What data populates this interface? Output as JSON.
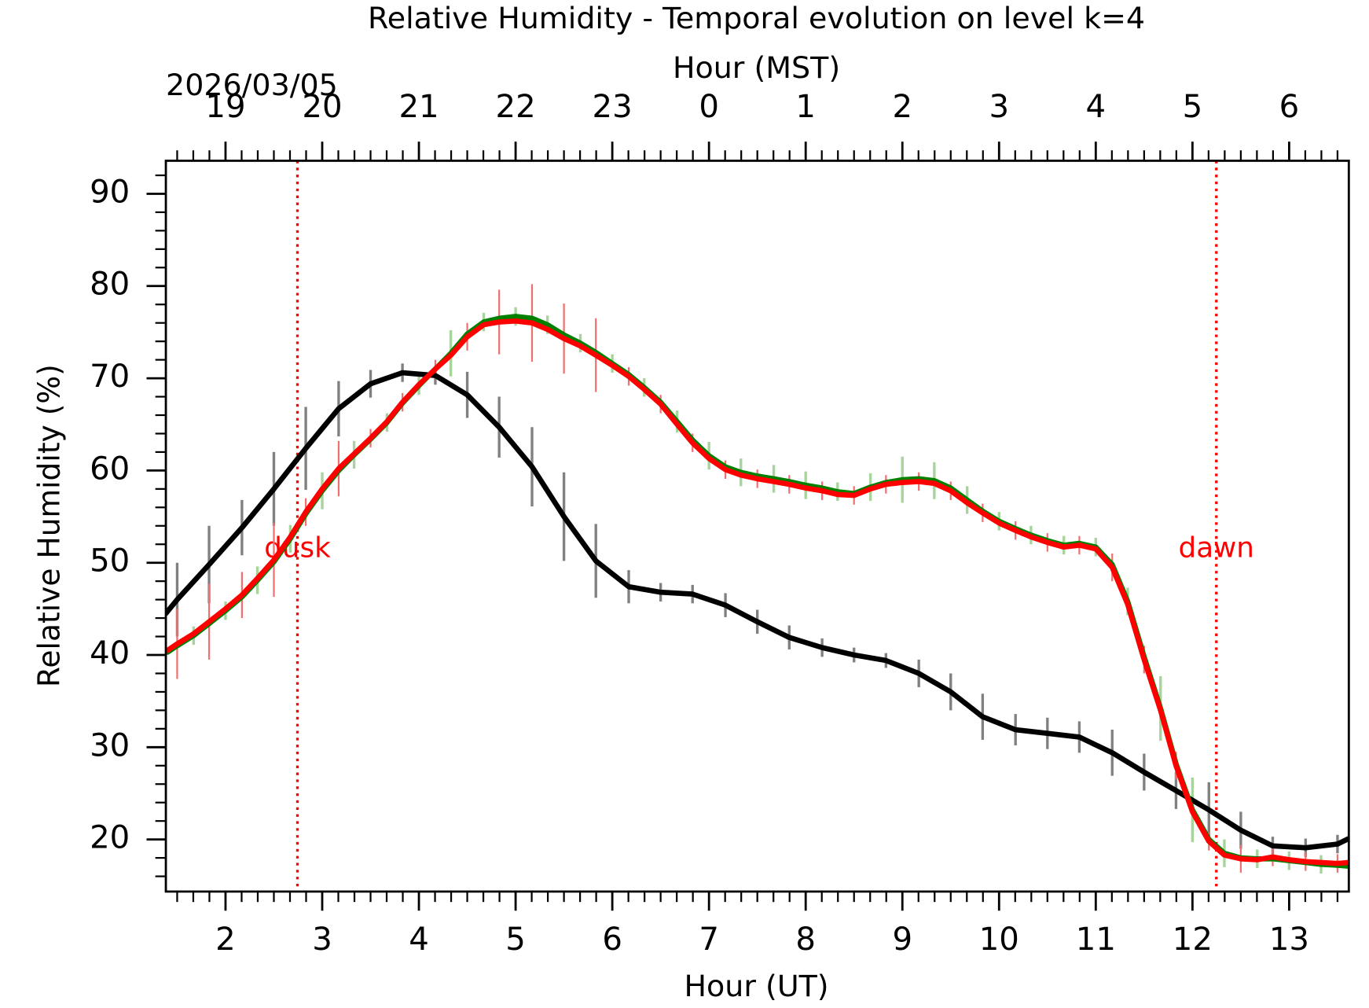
{
  "chart_data": {
    "type": "line",
    "title": "Relative Humidity - Temporal evolution on level k=4",
    "xlabel": "Hour (UT)",
    "ylabel": "Relative Humidity (%)",
    "x2label": "Hour (MST)",
    "date_label": "2026/03/05",
    "xlim": [
      1.383,
      13.617
    ],
    "ylim": [
      14.35,
      93.58
    ],
    "xticks": [
      2,
      3,
      4,
      5,
      6,
      7,
      8,
      9,
      10,
      11,
      12,
      13
    ],
    "x2ticks": [
      {
        "value": 2,
        "label": "19"
      },
      {
        "value": 3,
        "label": "20"
      },
      {
        "value": 4,
        "label": "21"
      },
      {
        "value": 5,
        "label": "22"
      },
      {
        "value": 6,
        "label": "23"
      },
      {
        "value": 7,
        "label": "0"
      },
      {
        "value": 8,
        "label": "1"
      },
      {
        "value": 9,
        "label": "2"
      },
      {
        "value": 10,
        "label": "3"
      },
      {
        "value": 11,
        "label": "4"
      },
      {
        "value": 12,
        "label": "5"
      },
      {
        "value": 13,
        "label": "6"
      }
    ],
    "yticks": [
      20,
      30,
      40,
      50,
      60,
      70,
      80,
      90
    ],
    "annotations": [
      {
        "text": "dusk",
        "x": 2.744,
        "color": "#ff0000"
      },
      {
        "text": "dawn",
        "x": 12.247,
        "color": "#ff0000"
      }
    ],
    "series": [
      {
        "color": "#000000",
        "errorbar_color": "#808080",
        "x": [
          1.383,
          1.5,
          1.83,
          2.17,
          2.5,
          2.83,
          3.17,
          3.5,
          3.83,
          4.17,
          4.5,
          4.83,
          5.17,
          5.5,
          5.83,
          6.17,
          6.5,
          6.83,
          7.17,
          7.5,
          7.83,
          8.17,
          8.5,
          8.83,
          9.17,
          9.5,
          9.83,
          10.17,
          10.5,
          10.83,
          11.17,
          11.5,
          11.83,
          12.17,
          12.5,
          12.83,
          13.17,
          13.5,
          13.617
        ],
        "values": [
          44.5,
          46,
          49.8,
          53.8,
          58,
          62.4,
          66.7,
          69.4,
          70.6,
          70.3,
          68.2,
          64.7,
          60.4,
          55,
          50.2,
          47.4,
          46.8,
          46.6,
          45.4,
          43.6,
          41.9,
          40.8,
          40,
          39.4,
          38,
          36,
          33.3,
          31.9,
          31.5,
          31.1,
          29.4,
          27.3,
          25.3,
          23.2,
          21,
          19.3,
          19.1,
          19.5,
          20.1
        ],
        "errors": [
          null,
          4,
          4.2,
          3,
          4,
          4.5,
          3,
          1.5,
          1,
          1,
          2.5,
          3.3,
          4.3,
          4.8,
          4,
          1.8,
          1,
          1,
          1.3,
          1.3,
          1.3,
          1,
          0.8,
          0.8,
          1.5,
          2,
          2.5,
          1.7,
          1.7,
          1.7,
          2.5,
          2,
          2,
          3,
          2,
          1,
          1,
          1,
          null
        ]
      },
      {
        "color": "#008000",
        "errorbar_color": "#a6d49a",
        "x": [
          1.4,
          1.5,
          1.67,
          1.83,
          2.0,
          2.17,
          2.33,
          2.5,
          2.67,
          2.83,
          3.0,
          3.17,
          3.33,
          3.5,
          3.67,
          3.83,
          4.0,
          4.17,
          4.33,
          4.5,
          4.67,
          4.83,
          5.0,
          5.17,
          5.33,
          5.5,
          5.67,
          5.83,
          6.0,
          6.17,
          6.33,
          6.5,
          6.67,
          6.83,
          7.0,
          7.17,
          7.33,
          7.5,
          7.67,
          7.83,
          8.0,
          8.17,
          8.33,
          8.5,
          8.67,
          8.83,
          9.0,
          9.17,
          9.33,
          9.5,
          9.67,
          9.83,
          10.0,
          10.17,
          10.33,
          10.5,
          10.67,
          10.83,
          11.0,
          11.17,
          11.33,
          11.5,
          11.67,
          11.83,
          12.0,
          12.17,
          12.33,
          12.5,
          12.67,
          12.83,
          13.0,
          13.17,
          13.33,
          13.5,
          13.617
        ],
        "values": [
          40.3,
          41,
          42.1,
          43.4,
          44.8,
          46.3,
          48.1,
          50.1,
          52.6,
          55.3,
          57.8,
          60,
          61.7,
          63.4,
          65.2,
          67.3,
          69.2,
          71,
          72.7,
          74.8,
          76.1,
          76.5,
          76.7,
          76.5,
          75.8,
          74.7,
          73.8,
          72.8,
          71.6,
          70.4,
          69,
          67.4,
          65.3,
          63.3,
          61.6,
          60.4,
          59.8,
          59.4,
          59.1,
          58.8,
          58.4,
          58.1,
          57.7,
          57.5,
          58.2,
          58.7,
          59,
          59.1,
          58.9,
          58.1,
          56.8,
          55.6,
          54.5,
          53.7,
          53,
          52.4,
          51.9,
          52.1,
          51.7,
          49.8,
          45.8,
          39.8,
          34.2,
          28.2,
          23.2,
          20,
          18.5,
          18,
          17.9,
          17.9,
          17.7,
          17.5,
          17.3,
          17.2,
          17.1
        ],
        "errors": [
          null,
          null,
          1,
          null,
          1,
          null,
          1.5,
          null,
          1.5,
          null,
          2,
          null,
          1.5,
          null,
          1,
          null,
          1,
          null,
          2.5,
          null,
          1,
          null,
          1,
          null,
          1,
          null,
          1,
          null,
          1,
          null,
          1,
          null,
          1.2,
          null,
          1.5,
          null,
          1.5,
          null,
          1.5,
          null,
          1.5,
          null,
          1,
          null,
          1.5,
          null,
          2.5,
          null,
          2,
          null,
          1.5,
          null,
          1,
          null,
          1,
          null,
          1,
          null,
          1,
          null,
          1.5,
          null,
          3.5,
          null,
          3.5,
          null,
          1.5,
          null,
          1,
          null,
          1,
          null,
          1,
          null,
          null
        ]
      },
      {
        "color": "#ff0000",
        "errorbar_color": "#f07070",
        "x": [
          1.4,
          1.5,
          1.67,
          1.83,
          2.0,
          2.17,
          2.33,
          2.5,
          2.67,
          2.83,
          3.0,
          3.17,
          3.33,
          3.5,
          3.67,
          3.83,
          4.0,
          4.17,
          4.33,
          4.5,
          4.67,
          4.83,
          5.0,
          5.17,
          5.33,
          5.5,
          5.67,
          5.83,
          6.0,
          6.17,
          6.33,
          6.5,
          6.67,
          6.83,
          7.0,
          7.17,
          7.33,
          7.5,
          7.67,
          7.83,
          8.0,
          8.17,
          8.33,
          8.5,
          8.67,
          8.83,
          9.0,
          9.17,
          9.33,
          9.5,
          9.67,
          9.83,
          10.0,
          10.17,
          10.33,
          10.5,
          10.67,
          10.83,
          11.0,
          11.17,
          11.33,
          11.5,
          11.67,
          11.83,
          12.0,
          12.17,
          12.33,
          12.5,
          12.67,
          12.83,
          13.0,
          13.17,
          13.33,
          13.5,
          13.617
        ],
        "values": [
          40.5,
          41.2,
          42.3,
          43.6,
          45,
          46.5,
          48.3,
          50.3,
          52.8,
          55.5,
          58,
          60.2,
          61.8,
          63.5,
          65.3,
          67.4,
          69.3,
          71,
          72.5,
          74.5,
          75.8,
          76.1,
          76.2,
          76,
          75.3,
          74.3,
          73.5,
          72.5,
          71.4,
          70.2,
          68.8,
          67.2,
          65,
          63,
          61.3,
          60.1,
          59.5,
          59.1,
          58.8,
          58.5,
          58.1,
          57.8,
          57.4,
          57.3,
          58,
          58.5,
          58.7,
          58.8,
          58.6,
          57.8,
          56.5,
          55.4,
          54.3,
          53.5,
          52.8,
          52.2,
          51.7,
          51.9,
          51.5,
          49.5,
          45.5,
          39.5,
          34,
          28,
          23,
          19.8,
          18.3,
          17.9,
          17.8,
          18.1,
          17.8,
          17.6,
          17.5,
          17.4,
          17.5
        ],
        "errors": [
          null,
          3.8,
          null,
          4.1,
          null,
          2.5,
          null,
          4,
          null,
          1.5,
          null,
          3,
          null,
          1,
          null,
          1,
          null,
          1,
          null,
          1.5,
          null,
          3.5,
          null,
          4.2,
          null,
          3.8,
          null,
          4,
          null,
          1,
          null,
          1,
          null,
          1,
          null,
          1,
          null,
          1,
          null,
          1,
          null,
          1,
          null,
          1,
          null,
          1,
          null,
          1,
          null,
          1,
          null,
          1,
          null,
          1,
          null,
          1,
          null,
          1,
          null,
          1.5,
          null,
          1.5,
          null,
          1.5,
          null,
          1,
          null,
          1.5,
          null,
          1,
          null,
          1,
          null,
          1,
          null
        ]
      }
    ]
  }
}
